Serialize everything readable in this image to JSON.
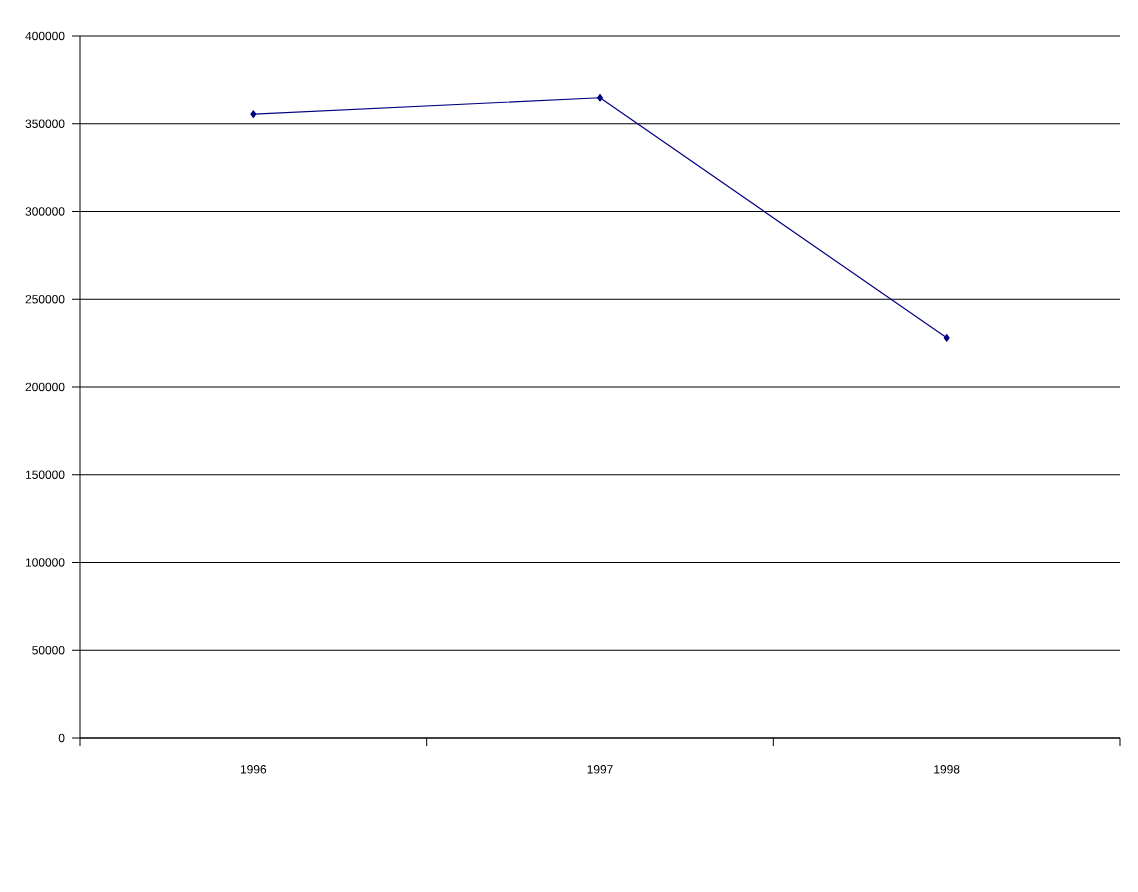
{
  "chart_data": {
    "type": "line",
    "categories": [
      "1996",
      "1997",
      "1998"
    ],
    "series": [
      {
        "color": "#000080",
        "values": [
          355500,
          364800,
          228000
        ]
      }
    ],
    "ylim": [
      0,
      400000
    ],
    "yticks": [
      0,
      50000,
      100000,
      150000,
      200000,
      250000,
      300000,
      350000,
      400000
    ],
    "grid": "y",
    "marker": "diamond",
    "line_style": "solid"
  }
}
